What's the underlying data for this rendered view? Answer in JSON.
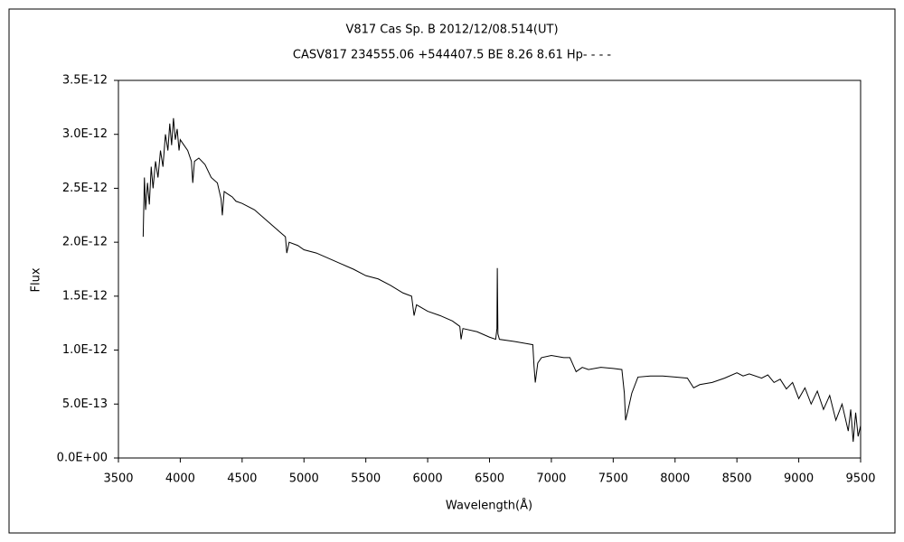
{
  "chart_data": {
    "type": "line",
    "title": "V817 Cas    Sp. B    2012/12/08.514(UT)",
    "subtitle": "CASV817 234555.06 +544407.5 BE 8.26  8.61  Hp- - - -",
    "x_label": "Wavelength(Å)",
    "y_label": "Flux",
    "color": "#000000",
    "x": [
      3700,
      3710,
      3720,
      3735,
      3750,
      3765,
      3780,
      3800,
      3820,
      3840,
      3860,
      3880,
      3900,
      3915,
      3930,
      3945,
      3960,
      3975,
      3990,
      4000,
      4030,
      4060,
      4090,
      4101,
      4115,
      4150,
      4200,
      4250,
      4300,
      4330,
      4340,
      4355,
      4380,
      4420,
      4450,
      4500,
      4600,
      4700,
      4800,
      4850,
      4861,
      4880,
      4950,
      5000,
      5100,
      5200,
      5300,
      5400,
      5500,
      5600,
      5700,
      5800,
      5870,
      5890,
      5910,
      6000,
      6100,
      6200,
      6260,
      6270,
      6285,
      6400,
      6500,
      6550,
      6560,
      6563,
      6568,
      6580,
      6700,
      6800,
      6850,
      6860,
      6870,
      6890,
      6920,
      7000,
      7100,
      7150,
      7200,
      7250,
      7300,
      7400,
      7500,
      7570,
      7590,
      7600,
      7615,
      7650,
      7700,
      7800,
      7900,
      8000,
      8100,
      8150,
      8200,
      8300,
      8400,
      8500,
      8550,
      8600,
      8700,
      8750,
      8800,
      8850,
      8900,
      8950,
      9000,
      9050,
      9100,
      9150,
      9200,
      9250,
      9300,
      9350,
      9400,
      9420,
      9440,
      9460,
      9480,
      9500
    ],
    "values": [
      2.05e-12,
      2.6e-12,
      2.3e-12,
      2.55e-12,
      2.35e-12,
      2.7e-12,
      2.5e-12,
      2.75e-12,
      2.6e-12,
      2.85e-12,
      2.7e-12,
      3e-12,
      2.85e-12,
      3.1e-12,
      2.9e-12,
      3.15e-12,
      2.95e-12,
      3.05e-12,
      2.85e-12,
      2.95e-12,
      2.9e-12,
      2.85e-12,
      2.75e-12,
      2.55e-12,
      2.75e-12,
      2.78e-12,
      2.72e-12,
      2.6e-12,
      2.55e-12,
      2.4e-12,
      2.25e-12,
      2.47e-12,
      2.45e-12,
      2.42e-12,
      2.38e-12,
      2.36e-12,
      2.3e-12,
      2.2e-12,
      2.1e-12,
      2.05e-12,
      1.9e-12,
      2e-12,
      1.97e-12,
      1.93e-12,
      1.9e-12,
      1.85e-12,
      1.8e-12,
      1.75e-12,
      1.69e-12,
      1.66e-12,
      1.6e-12,
      1.53e-12,
      1.5e-12,
      1.32e-12,
      1.42e-12,
      1.36e-12,
      1.32e-12,
      1.27e-12,
      1.22e-12,
      1.1e-12,
      1.2e-12,
      1.17e-12,
      1.12e-12,
      1.1e-12,
      1.2e-12,
      1.76e-12,
      1.15e-12,
      1.1e-12,
      1.08e-12,
      1.06e-12,
      1.05e-12,
      8.5e-13,
      7e-13,
      8.8e-13,
      9.3e-13,
      9.5e-13,
      9.3e-13,
      9.3e-13,
      8e-13,
      8.4e-13,
      8.2e-13,
      8.4e-13,
      8.3e-13,
      8.2e-13,
      6e-13,
      3.5e-13,
      4.2e-13,
      6e-13,
      7.5e-13,
      7.6e-13,
      7.6e-13,
      7.5e-13,
      7.4e-13,
      6.5e-13,
      6.8e-13,
      7e-13,
      7.4e-13,
      7.9e-13,
      7.6e-13,
      7.8e-13,
      7.4e-13,
      7.7e-13,
      7e-13,
      7.3e-13,
      6.4e-13,
      7e-13,
      5.5e-13,
      6.5e-13,
      5e-13,
      6.2e-13,
      4.5e-13,
      5.8e-13,
      3.5e-13,
      5e-13,
      2.5e-13,
      4.5e-13,
      1.5e-13,
      4.2e-13,
      2e-13,
      3e-13
    ],
    "xlim": [
      3500,
      9500
    ],
    "xticks": [
      3500,
      4000,
      4500,
      5000,
      5500,
      6000,
      6500,
      7000,
      7500,
      8000,
      8500,
      9000,
      9500
    ],
    "ylim": [
      0,
      3.5e-12
    ],
    "yticks": [
      {
        "value": 0,
        "label": "0.0E+00"
      },
      {
        "value": 5e-13,
        "label": "5.0E-13"
      },
      {
        "value": 1e-12,
        "label": "1.0E-12"
      },
      {
        "value": 1.5e-12,
        "label": "1.5E-12"
      },
      {
        "value": 2e-12,
        "label": "2.0E-12"
      },
      {
        "value": 2.5e-12,
        "label": "2.5E-12"
      },
      {
        "value": 3e-12,
        "label": "3.0E-12"
      },
      {
        "value": 3.5e-12,
        "label": "3.5E-12"
      }
    ]
  }
}
